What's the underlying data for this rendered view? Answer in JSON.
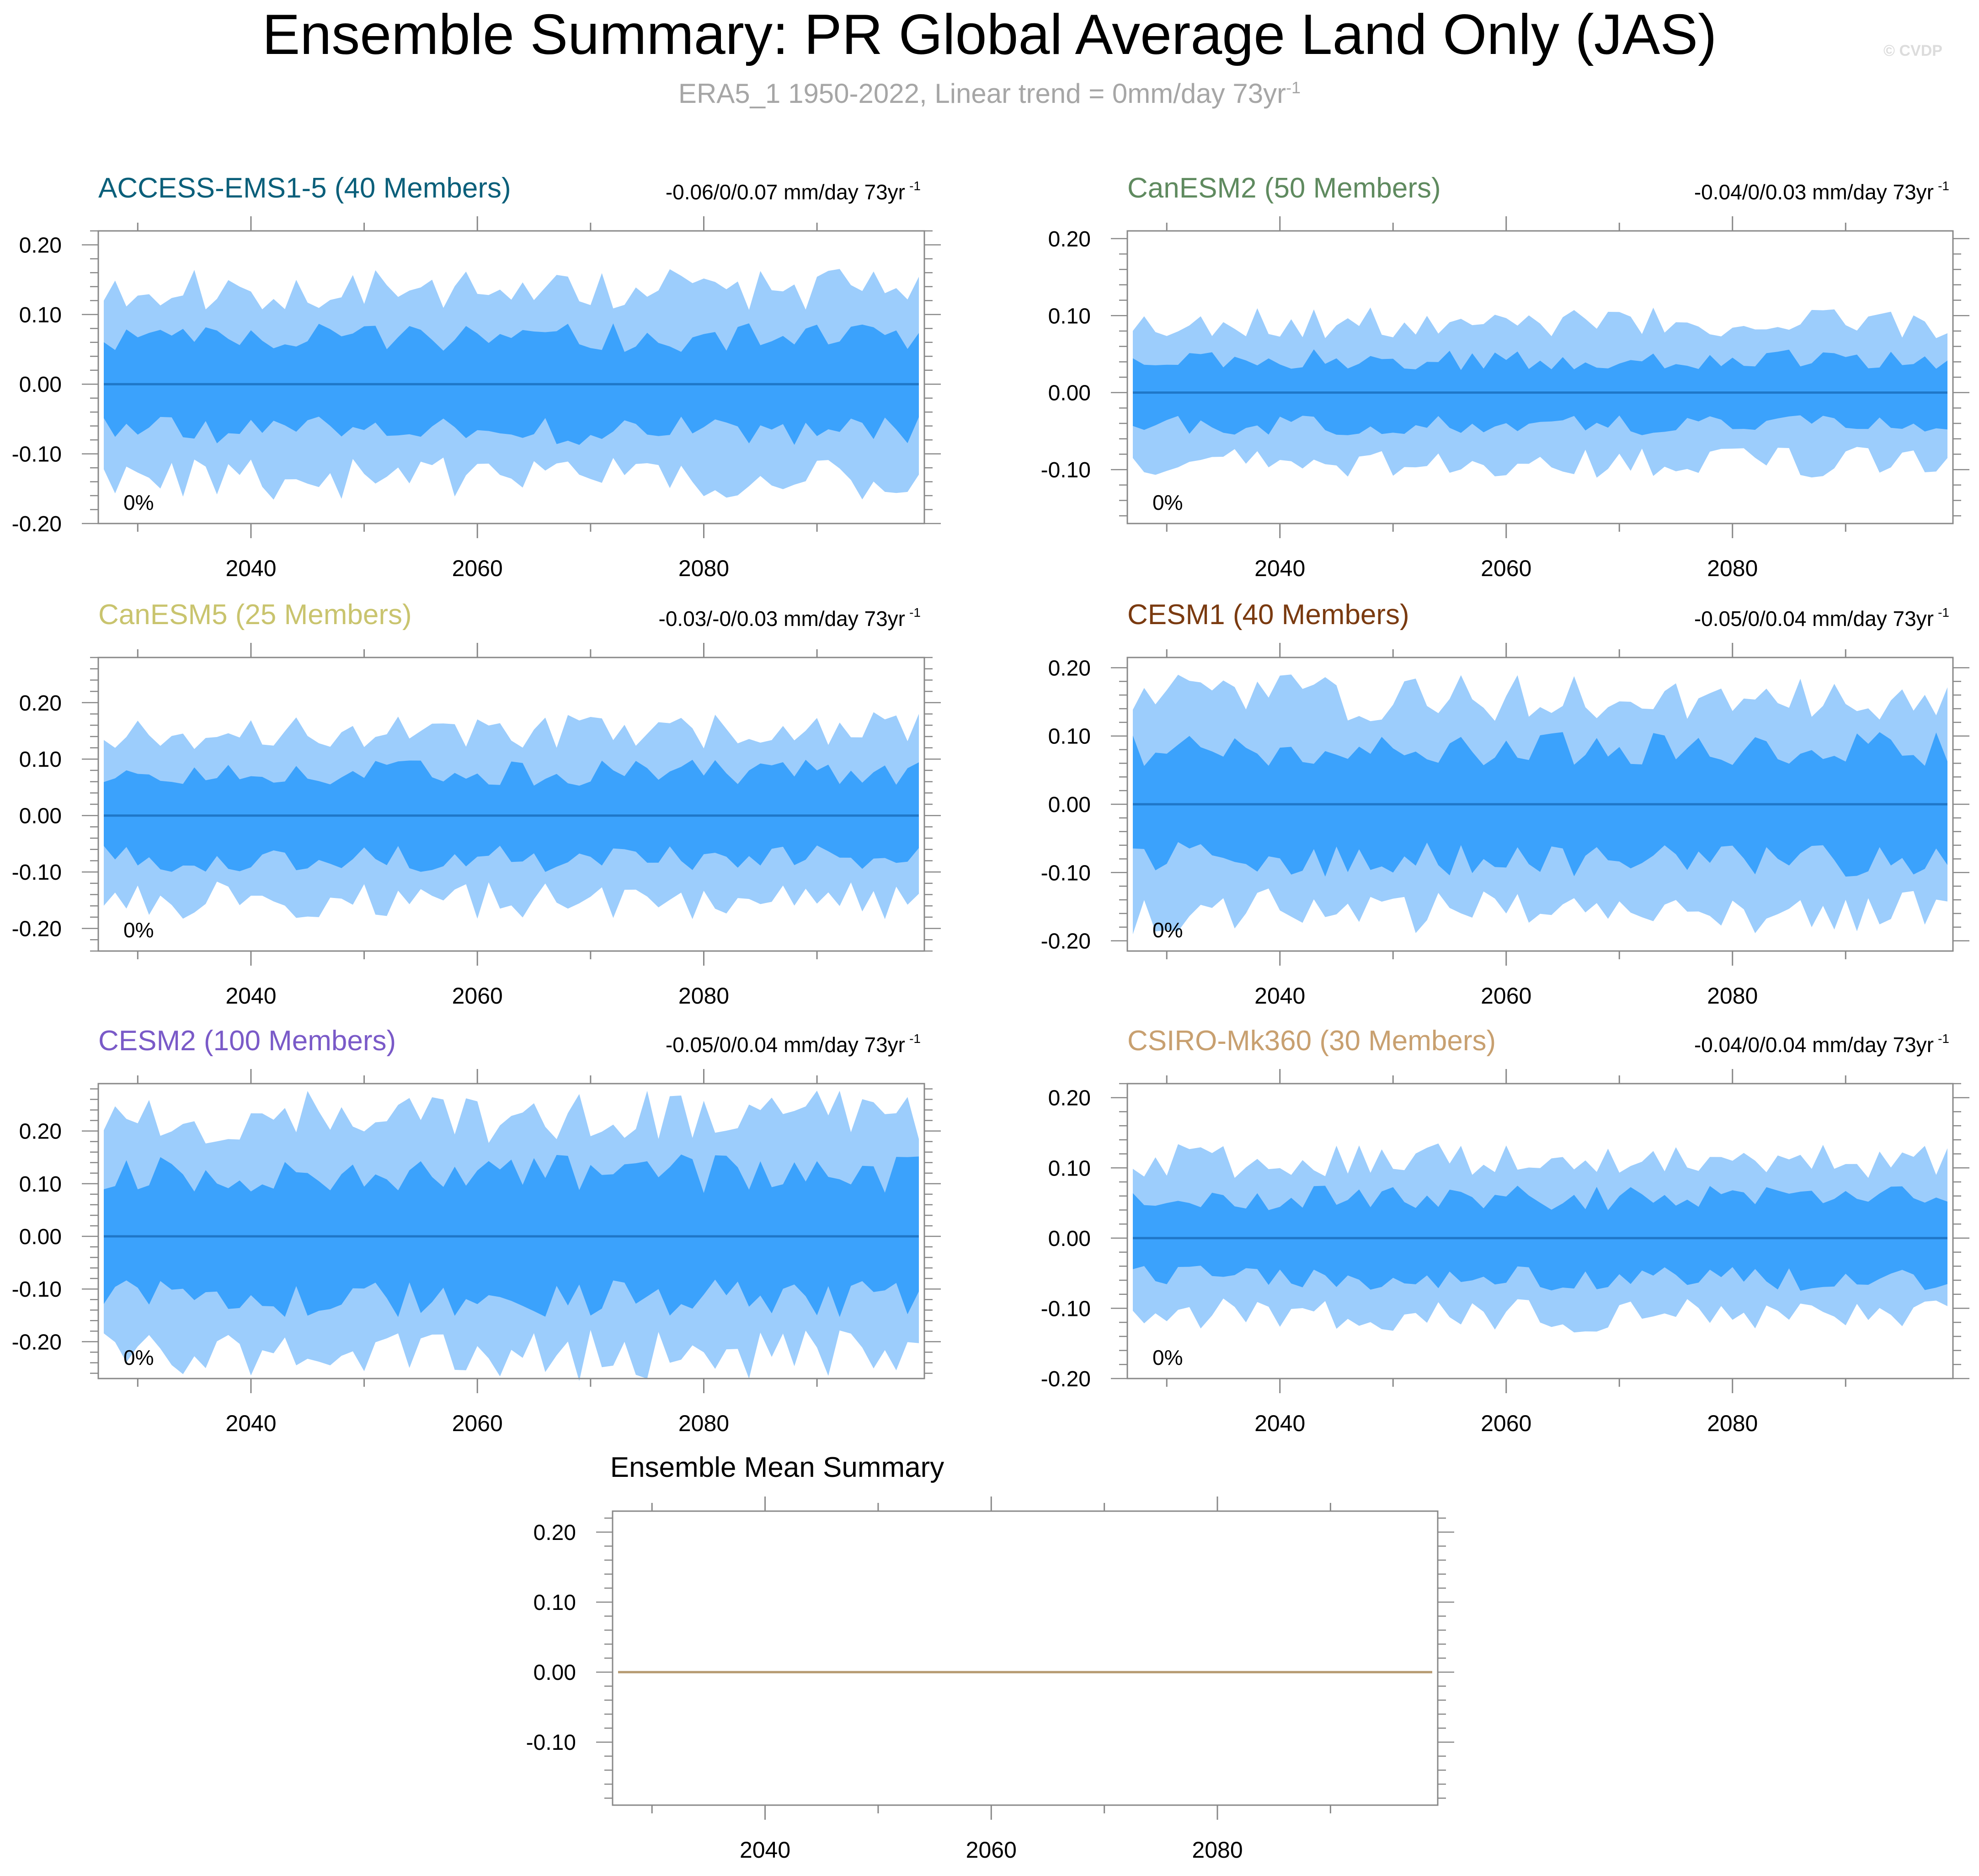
{
  "header": {
    "title": "Ensemble Summary: PR Global Average Land Only (JAS)",
    "subtitle_main": "ERA5_1 1950-2022, Linear trend = 0mm/day 73yr",
    "subtitle_sup": "-1",
    "watermark": "© CVDP"
  },
  "chart_data": [
    {
      "type": "area",
      "title": "ACCESS-EMS1-5 (40 Members)",
      "title_color": "#0a5f7a",
      "trend_label": "-0.06/0/0.07 mm/day 73yr",
      "trend_sup": "-1",
      "percent_label": "0%",
      "x_start": 2027,
      "x_end": 2099,
      "xticks": [
        2040,
        2060,
        2080
      ],
      "ylim": [
        -0.2,
        0.22
      ],
      "yticks": [
        -0.2,
        -0.1,
        0.0,
        0.1,
        0.2
      ],
      "ytick_labels": [
        "-0.20",
        "-0.10",
        "0.00",
        "0.10",
        "0.20"
      ],
      "outer_amp": 0.135,
      "inner_amp": 0.07,
      "seed": 11,
      "series": [
        {
          "name": "ensemble mean",
          "value": 0.0,
          "color": "#1f77c8"
        }
      ]
    },
    {
      "type": "area",
      "title": "CanESM2 (50 Members)",
      "title_color": "#5f8a5f",
      "trend_label": "-0.04/0/0.03 mm/day 73yr",
      "trend_sup": "-1",
      "percent_label": "0%",
      "x_start": 2027,
      "x_end": 2099,
      "xticks": [
        2040,
        2060,
        2080
      ],
      "ylim": [
        -0.17,
        0.21
      ],
      "yticks": [
        -0.1,
        0.0,
        0.1,
        0.2
      ],
      "ytick_labels": [
        "-0.10",
        "0.00",
        "0.10",
        "0.20"
      ],
      "outer_amp": 0.09,
      "inner_amp": 0.045,
      "seed": 23,
      "series": [
        {
          "name": "ensemble mean",
          "value": 0.0,
          "color": "#1f77c8"
        }
      ]
    },
    {
      "type": "area",
      "title": "CanESM5 (25 Members)",
      "title_color": "#c9c46e",
      "trend_label": "-0.03/-0/0.03 mm/day 73yr",
      "trend_sup": "-1",
      "percent_label": "0%",
      "x_start": 2027,
      "x_end": 2099,
      "xticks": [
        2040,
        2060,
        2080
      ],
      "ylim": [
        -0.24,
        0.28
      ],
      "yticks": [
        -0.2,
        -0.1,
        0.0,
        0.1,
        0.2
      ],
      "ytick_labels": [
        "-0.20",
        "-0.10",
        "0.00",
        "0.10",
        "0.20"
      ],
      "outer_amp": 0.15,
      "inner_amp": 0.08,
      "seed": 37,
      "series": [
        {
          "name": "ensemble mean",
          "value": 0.0,
          "color": "#1f77c8"
        }
      ]
    },
    {
      "type": "area",
      "title": "CESM1 (40 Members)",
      "title_color": "#7a3a10",
      "trend_label": "-0.05/0/0.04 mm/day 73yr",
      "trend_sup": "-1",
      "percent_label": "0%",
      "x_start": 2027,
      "x_end": 2099,
      "xticks": [
        2040,
        2060,
        2080
      ],
      "ylim": [
        -0.215,
        0.215
      ],
      "yticks": [
        -0.2,
        -0.1,
        0.0,
        0.1,
        0.2
      ],
      "ytick_labels": [
        "-0.20",
        "-0.10",
        "0.00",
        "0.10",
        "0.20"
      ],
      "outer_amp": 0.155,
      "inner_amp": 0.085,
      "seed": 41,
      "series": [
        {
          "name": "ensemble mean",
          "value": 0.0,
          "color": "#1f77c8"
        }
      ]
    },
    {
      "type": "area",
      "title": "CESM2 (100 Members)",
      "title_color": "#7a5ac8",
      "trend_label": "-0.05/0/0.04 mm/day 73yr",
      "trend_sup": "-1",
      "percent_label": "0%",
      "x_start": 2027,
      "x_end": 2099,
      "xticks": [
        2040,
        2060,
        2080
      ],
      "ylim": [
        -0.27,
        0.29
      ],
      "yticks": [
        -0.2,
        -0.1,
        0.0,
        0.1,
        0.2
      ],
      "ytick_labels": [
        "-0.20",
        "-0.10",
        "0.00",
        "0.10",
        "0.20"
      ],
      "outer_amp": 0.225,
      "inner_amp": 0.125,
      "seed": 53,
      "series": [
        {
          "name": "ensemble mean",
          "value": 0.0,
          "color": "#1f77c8"
        }
      ]
    },
    {
      "type": "area",
      "title": "CSIRO-Mk360 (30 Members)",
      "title_color": "#c8a070",
      "trend_label": "-0.04/0/0.04 mm/day 73yr",
      "trend_sup": "-1",
      "percent_label": "0%",
      "x_start": 2027,
      "x_end": 2099,
      "xticks": [
        2040,
        2060,
        2080
      ],
      "ylim": [
        -0.2,
        0.22
      ],
      "yticks": [
        -0.2,
        -0.1,
        0.0,
        0.1,
        0.2
      ],
      "ytick_labels": [
        "-0.20",
        "-0.10",
        "0.00",
        "0.10",
        "0.20"
      ],
      "outer_amp": 0.11,
      "inner_amp": 0.06,
      "seed": 67,
      "series": [
        {
          "name": "ensemble mean",
          "value": 0.0,
          "color": "#1f77c8"
        }
      ]
    },
    {
      "type": "line",
      "title": "Ensemble Mean Summary",
      "title_color": "#000000",
      "x_start": 2027,
      "x_end": 2099,
      "xticks": [
        2040,
        2060,
        2080
      ],
      "ylim": [
        -0.19,
        0.23
      ],
      "yticks": [
        -0.1,
        0.0,
        0.1,
        0.2
      ],
      "ytick_labels": [
        "-0.10",
        "0.00",
        "0.10",
        "0.20"
      ],
      "series": [
        {
          "name": "ensemble mean",
          "value": 0.0,
          "color": "#b59a70"
        }
      ]
    }
  ],
  "colors": {
    "outer_band": "#9ccdfc",
    "inner_band": "#3ba2fc",
    "mean_line": "#1f77c8",
    "axis": "#888888"
  }
}
